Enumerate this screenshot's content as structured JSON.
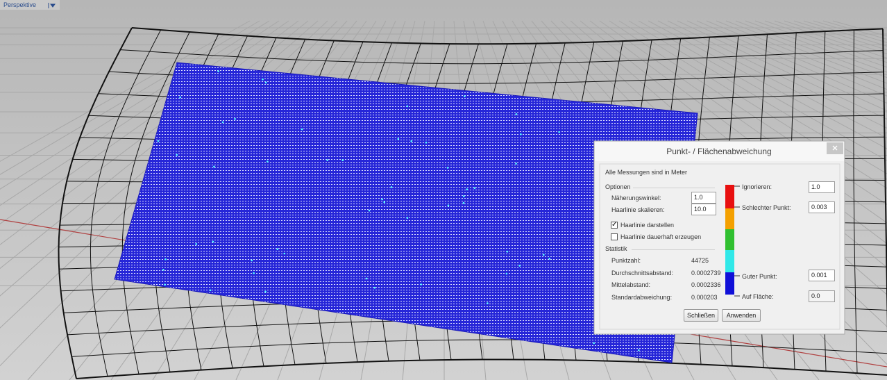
{
  "viewport": {
    "label": "Perspektive"
  },
  "dialog": {
    "title": "Punkt- / Flächenabweichung",
    "note": "Alle Messungen sind in Meter",
    "options": {
      "heading": "Optionen",
      "fields": [
        {
          "label": "Näherungswinkel:",
          "value": "1.0"
        },
        {
          "label": "Haarlinie skalieren:",
          "value": "10.0"
        }
      ],
      "checkboxes": [
        {
          "label": "Haarlinie darstellen",
          "checked": true
        },
        {
          "label": "Haarlinie dauerhaft erzeugen",
          "checked": false
        }
      ]
    },
    "statistics": {
      "heading": "Statistik",
      "rows": [
        {
          "label": "Punktzahl:",
          "value": "44725"
        },
        {
          "label": "Durchschnittsabstand:",
          "value": "0.0002739"
        },
        {
          "label": "Mittelabstand:",
          "value": "0.0002336"
        },
        {
          "label": "Standardabweichung:",
          "value": "0.000203"
        }
      ]
    },
    "legend": [
      {
        "label": "Ignorieren:",
        "value": "1.0"
      },
      {
        "label": "Schlechter Punkt:",
        "value": "0.003"
      },
      {
        "label": "Guter Punkt:",
        "value": "0.001"
      },
      {
        "label": "Auf Fläche:",
        "value": "0.0"
      }
    ],
    "buttons": [
      "Schließen",
      "Anwenden"
    ]
  }
}
